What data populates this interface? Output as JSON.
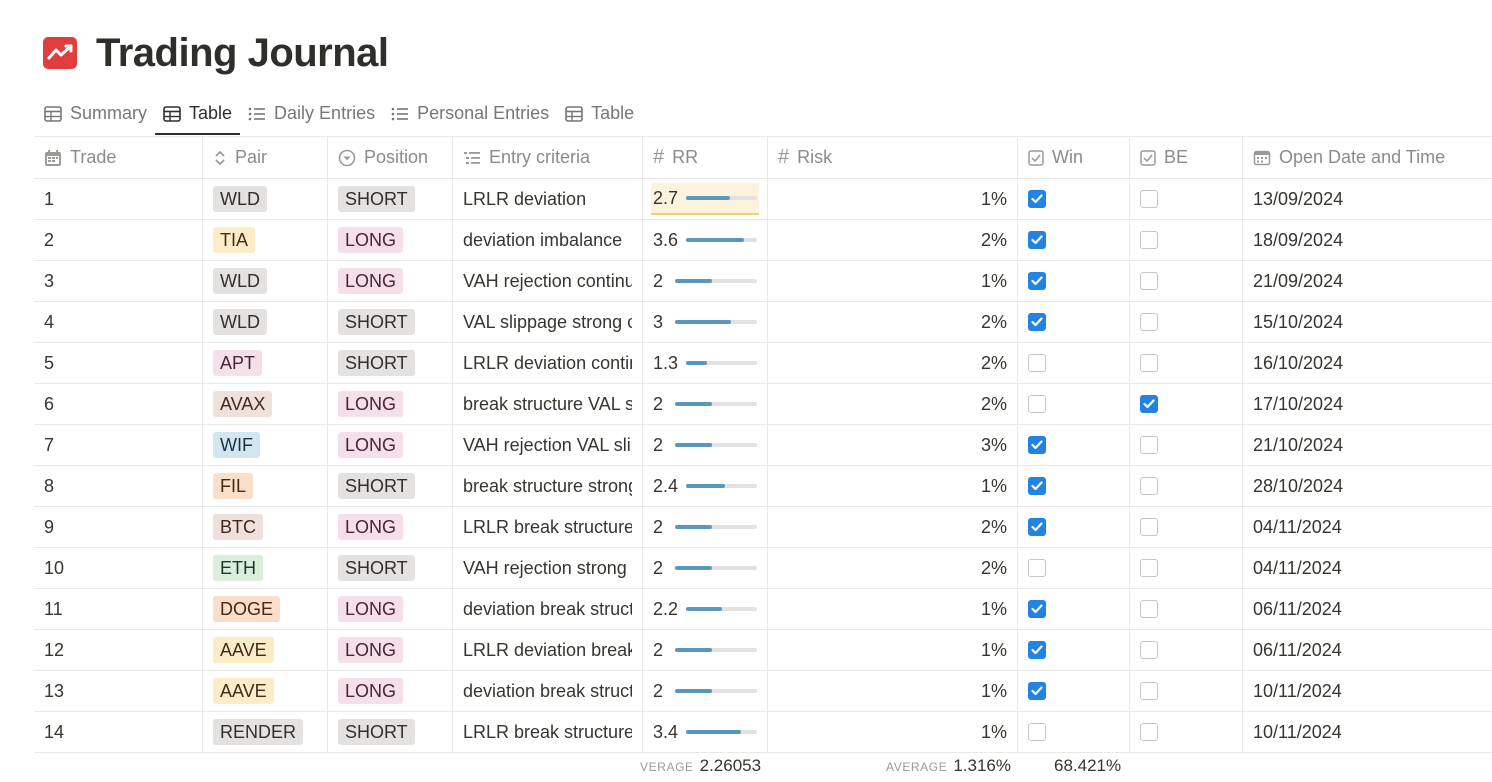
{
  "title": "Trading Journal",
  "tabs": [
    {
      "label": "Summary",
      "icon": "table-icon",
      "active": false
    },
    {
      "label": "Table",
      "icon": "table-icon",
      "active": true
    },
    {
      "label": "Daily Entries",
      "icon": "list-icon",
      "active": false
    },
    {
      "label": "Personal Entries",
      "icon": "list-icon",
      "active": false
    },
    {
      "label": "Table",
      "icon": "table-icon",
      "active": false
    }
  ],
  "columns": {
    "trade": "Trade",
    "pair": "Pair",
    "position": "Position",
    "entry": "Entry criteria",
    "rr": "RR",
    "risk": "Risk",
    "win": "Win",
    "be": "BE",
    "date": "Open Date and Time"
  },
  "rr_max": 4.4,
  "colors": {
    "accent": "#2383e2",
    "rr_bar": "#5b97bd",
    "title_icon": "#e03e3e"
  },
  "pair_colors": {
    "WLD": {
      "bg": "#e3e2e0",
      "fg": "#32302c"
    },
    "TIA": {
      "bg": "#fdecc8",
      "fg": "#402c1b"
    },
    "APT": {
      "bg": "#f5e0e9",
      "fg": "#4c2337"
    },
    "AVAX": {
      "bg": "#eee0da",
      "fg": "#442a1e"
    },
    "WIF": {
      "bg": "#d3e5ef",
      "fg": "#183347"
    },
    "FIL": {
      "bg": "#fadec9",
      "fg": "#49290e"
    },
    "BTC": {
      "bg": "#eee0da",
      "fg": "#442a1e"
    },
    "ETH": {
      "bg": "#dbeddb",
      "fg": "#1c3829"
    },
    "DOGE": {
      "bg": "#fadec9",
      "fg": "#49290e"
    },
    "AAVE": {
      "bg": "#fdecc8",
      "fg": "#402c1b"
    },
    "RENDER": {
      "bg": "#e3e2e0",
      "fg": "#32302c"
    }
  },
  "position_colors": {
    "SHORT": {
      "bg": "#e3e2e0",
      "fg": "#32302c"
    },
    "LONG": {
      "bg": "#f5e0e9",
      "fg": "#4c2337"
    }
  },
  "rows": [
    {
      "trade": "1",
      "pair": "WLD",
      "position": "SHORT",
      "entry": "LRLR deviation",
      "rr": "2.7",
      "risk": "1%",
      "win": true,
      "be": false,
      "date": "13/09/2024",
      "highlight": true
    },
    {
      "trade": "2",
      "pair": "TIA",
      "position": "LONG",
      "entry": "deviation imbalance",
      "rr": "3.6",
      "risk": "2%",
      "win": true,
      "be": false,
      "date": "18/09/2024"
    },
    {
      "trade": "3",
      "pair": "WLD",
      "position": "LONG",
      "entry": "VAH rejection continuation",
      "rr": "2",
      "risk": "1%",
      "win": true,
      "be": false,
      "date": "21/09/2024"
    },
    {
      "trade": "4",
      "pair": "WLD",
      "position": "SHORT",
      "entry": "VAL slippage strong continuation",
      "rr": "3",
      "risk": "2%",
      "win": true,
      "be": false,
      "date": "15/10/2024"
    },
    {
      "trade": "5",
      "pair": "APT",
      "position": "SHORT",
      "entry": "LRLR deviation continuation",
      "rr": "1.3",
      "risk": "2%",
      "win": false,
      "be": false,
      "date": "16/10/2024"
    },
    {
      "trade": "6",
      "pair": "AVAX",
      "position": "LONG",
      "entry": "break structure VAL slippage",
      "rr": "2",
      "risk": "2%",
      "win": false,
      "be": true,
      "date": "17/10/2024"
    },
    {
      "trade": "7",
      "pair": "WIF",
      "position": "LONG",
      "entry": "VAH rejection VAL slippage",
      "rr": "2",
      "risk": "3%",
      "win": true,
      "be": false,
      "date": "21/10/2024"
    },
    {
      "trade": "8",
      "pair": "FIL",
      "position": "SHORT",
      "entry": "break structure strong continuation",
      "rr": "2.4",
      "risk": "1%",
      "win": true,
      "be": false,
      "date": "28/10/2024"
    },
    {
      "trade": "9",
      "pair": "BTC",
      "position": "LONG",
      "entry": "LRLR break structure imbalance",
      "rr": "2",
      "risk": "2%",
      "win": true,
      "be": false,
      "date": "04/11/2024"
    },
    {
      "trade": "10",
      "pair": "ETH",
      "position": "SHORT",
      "entry": "VAH rejection strong continuation",
      "rr": "2",
      "risk": "2%",
      "win": false,
      "be": false,
      "date": "04/11/2024"
    },
    {
      "trade": "11",
      "pair": "DOGE",
      "position": "LONG",
      "entry": "deviation break structure",
      "rr": "2.2",
      "risk": "1%",
      "win": true,
      "be": false,
      "date": "06/11/2024"
    },
    {
      "trade": "12",
      "pair": "AAVE",
      "position": "LONG",
      "entry": "LRLR deviation break structure",
      "rr": "2",
      "risk": "1%",
      "win": true,
      "be": false,
      "date": "06/11/2024"
    },
    {
      "trade": "13",
      "pair": "AAVE",
      "position": "LONG",
      "entry": "deviation break structure",
      "rr": "2",
      "risk": "1%",
      "win": true,
      "be": false,
      "date": "10/11/2024"
    },
    {
      "trade": "14",
      "pair": "RENDER",
      "position": "SHORT",
      "entry": "LRLR break structure imbalance",
      "rr": "3.4",
      "risk": "1%",
      "win": false,
      "be": false,
      "date": "10/11/2024"
    }
  ],
  "footer": {
    "rr_label": "VERAGE",
    "rr_value": "2.26053",
    "risk_label": "AVERAGE",
    "risk_value": "1.316%",
    "win_value": "68.421%"
  }
}
